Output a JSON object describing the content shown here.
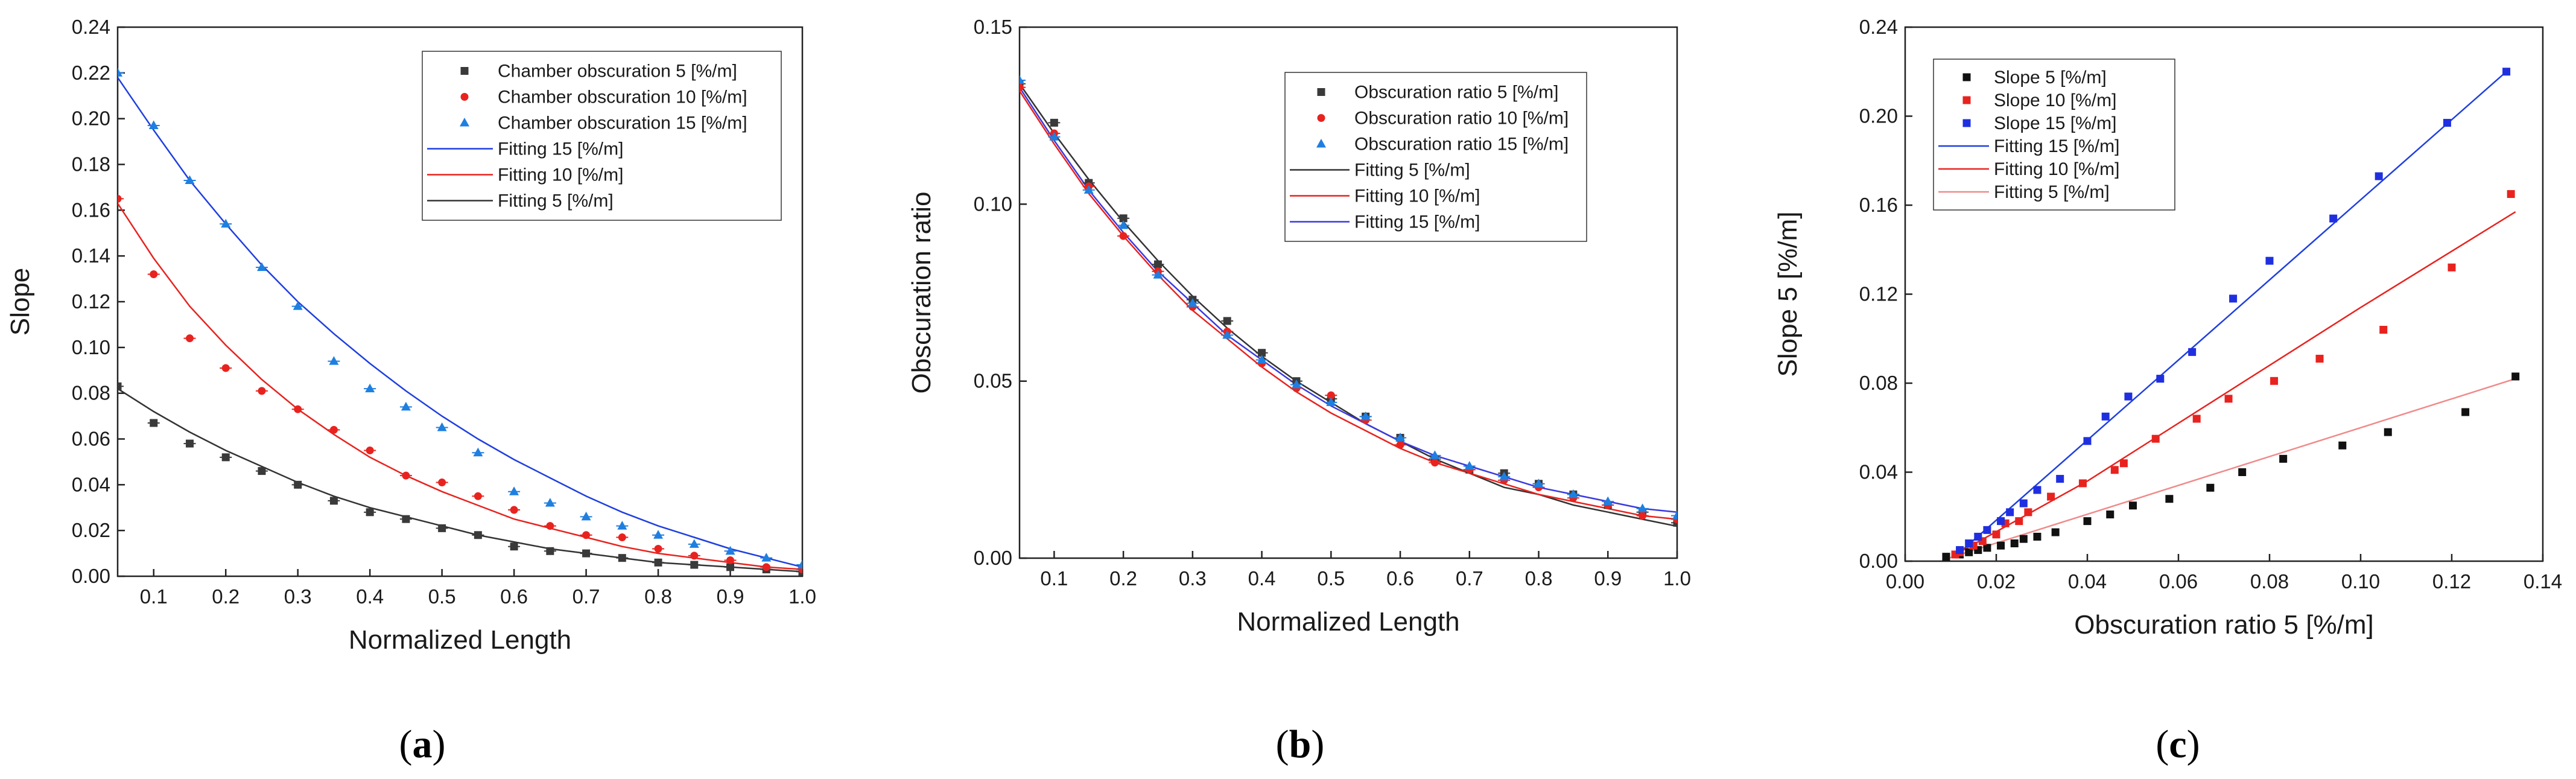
{
  "chart_data": [
    {
      "type": "scatter",
      "panel_label": "a",
      "xlabel": "Normalized Length",
      "ylabel": "Slope",
      "xlim": [
        0.05,
        1.0
      ],
      "ylim": [
        0,
        0.24
      ],
      "xticks": [
        0.1,
        0.2,
        0.3,
        0.4,
        0.5,
        0.6,
        0.7,
        0.8,
        0.9,
        1.0
      ],
      "xtick_labels": [
        "0.1",
        "0.2",
        "0.3",
        "0.4",
        "0.5",
        "0.6",
        "0.7",
        "0.8",
        "0.9",
        "1.0"
      ],
      "yticks": [
        0,
        0.02,
        0.04,
        0.06,
        0.08,
        0.1,
        0.12,
        0.14,
        0.16,
        0.18,
        0.2,
        0.22,
        0.24
      ],
      "ytick_labels": [
        "0.00",
        "0.02",
        "0.04",
        "0.06",
        "0.08",
        "0.10",
        "0.12",
        "0.14",
        "0.16",
        "0.18",
        "0.20",
        "0.22",
        "0.24"
      ],
      "legend_position": "top-right",
      "series": [
        {
          "name": "Chamber obscuration 5 [%/m]",
          "kind": "points",
          "marker": "square",
          "color": "#3a3a3a",
          "x": [
            0.05,
            0.1,
            0.15,
            0.2,
            0.25,
            0.3,
            0.35,
            0.4,
            0.45,
            0.5,
            0.55,
            0.6,
            0.65,
            0.7,
            0.75,
            0.8,
            0.85,
            0.9,
            0.95,
            1.0
          ],
          "y": [
            0.083,
            0.067,
            0.058,
            0.052,
            0.046,
            0.04,
            0.033,
            0.028,
            0.025,
            0.021,
            0.018,
            0.013,
            0.011,
            0.01,
            0.008,
            0.006,
            0.005,
            0.004,
            0.003,
            0.002
          ]
        },
        {
          "name": "Chamber obscuration 10 [%/m]",
          "kind": "points",
          "marker": "circle",
          "color": "#e8231f",
          "x": [
            0.05,
            0.1,
            0.15,
            0.2,
            0.25,
            0.3,
            0.35,
            0.4,
            0.45,
            0.5,
            0.55,
            0.6,
            0.65,
            0.7,
            0.75,
            0.8,
            0.85,
            0.9,
            0.95,
            1.0
          ],
          "y": [
            0.165,
            0.132,
            0.104,
            0.091,
            0.081,
            0.073,
            0.064,
            0.055,
            0.044,
            0.041,
            0.035,
            0.029,
            0.022,
            0.018,
            0.017,
            0.012,
            0.009,
            0.007,
            0.004,
            0.003
          ]
        },
        {
          "name": "Chamber obscuration 15 [%/m]",
          "kind": "points",
          "marker": "triangle",
          "color": "#1f7fe0",
          "x": [
            0.05,
            0.1,
            0.15,
            0.2,
            0.25,
            0.3,
            0.35,
            0.4,
            0.45,
            0.5,
            0.55,
            0.6,
            0.65,
            0.7,
            0.75,
            0.8,
            0.85,
            0.9,
            0.95,
            1.0
          ],
          "y": [
            0.22,
            0.197,
            0.173,
            0.154,
            0.135,
            0.118,
            0.094,
            0.082,
            0.074,
            0.065,
            0.054,
            0.037,
            0.032,
            0.026,
            0.022,
            0.018,
            0.014,
            0.011,
            0.008,
            0.005
          ]
        },
        {
          "name": "Fitting 15 [%/m]",
          "kind": "line",
          "color": "#1f3fe0",
          "x": [
            0.05,
            0.1,
            0.15,
            0.2,
            0.25,
            0.3,
            0.35,
            0.4,
            0.45,
            0.5,
            0.55,
            0.6,
            0.65,
            0.7,
            0.75,
            0.8,
            0.85,
            0.9,
            0.95,
            1.0
          ],
          "y": [
            0.218,
            0.195,
            0.173,
            0.154,
            0.136,
            0.12,
            0.106,
            0.093,
            0.081,
            0.07,
            0.06,
            0.051,
            0.043,
            0.035,
            0.028,
            0.022,
            0.017,
            0.012,
            0.008,
            0.004
          ]
        },
        {
          "name": "Fitting 10 [%/m]",
          "kind": "line",
          "color": "#e8231f",
          "x": [
            0.05,
            0.1,
            0.15,
            0.2,
            0.25,
            0.3,
            0.35,
            0.4,
            0.45,
            0.5,
            0.55,
            0.6,
            0.65,
            0.7,
            0.75,
            0.8,
            0.85,
            0.9,
            0.95,
            1.0
          ],
          "y": [
            0.163,
            0.139,
            0.118,
            0.101,
            0.086,
            0.073,
            0.062,
            0.052,
            0.044,
            0.037,
            0.031,
            0.025,
            0.021,
            0.017,
            0.013,
            0.01,
            0.008,
            0.006,
            0.004,
            0.003
          ]
        },
        {
          "name": "Fitting 5 [%/m]",
          "kind": "line",
          "color": "#333333",
          "x": [
            0.05,
            0.1,
            0.15,
            0.2,
            0.25,
            0.3,
            0.35,
            0.4,
            0.45,
            0.5,
            0.55,
            0.6,
            0.65,
            0.7,
            0.75,
            0.8,
            0.85,
            0.9,
            0.95,
            1.0
          ],
          "y": [
            0.082,
            0.072,
            0.063,
            0.055,
            0.048,
            0.041,
            0.035,
            0.03,
            0.026,
            0.022,
            0.018,
            0.015,
            0.012,
            0.01,
            0.008,
            0.006,
            0.005,
            0.004,
            0.003,
            0.002
          ]
        }
      ]
    },
    {
      "type": "scatter",
      "panel_label": "b",
      "xlabel": "Normalized Length",
      "ylabel": "Obscuration ratio",
      "xlim": [
        0.05,
        1.0
      ],
      "ylim": [
        0,
        0.15
      ],
      "xticks": [
        0.1,
        0.2,
        0.3,
        0.4,
        0.5,
        0.6,
        0.7,
        0.8,
        0.9,
        1.0
      ],
      "xtick_labels": [
        "0.1",
        "0.2",
        "0.3",
        "0.4",
        "0.5",
        "0.6",
        "0.7",
        "0.8",
        "0.9",
        "1.0"
      ],
      "yticks": [
        0,
        0.05,
        0.1,
        0.15
      ],
      "ytick_labels": [
        "0.00",
        "0.05",
        "0.10",
        "0.15"
      ],
      "legend_position": "top-right",
      "series": [
        {
          "name": "Obscuration ratio 5 [%/m]",
          "kind": "points",
          "marker": "square",
          "color": "#3a3a3a",
          "x": [
            0.05,
            0.1,
            0.15,
            0.2,
            0.25,
            0.3,
            0.35,
            0.4,
            0.45,
            0.5,
            0.55,
            0.6,
            0.65,
            0.7,
            0.75,
            0.8,
            0.85,
            0.9,
            0.95,
            1.0
          ],
          "y": [
            0.134,
            0.123,
            0.106,
            0.096,
            0.083,
            0.073,
            0.067,
            0.058,
            0.05,
            0.045,
            0.04,
            0.034,
            0.028,
            0.025,
            0.024,
            0.021,
            0.018,
            0.015,
            0.013,
            0.01
          ]
        },
        {
          "name": "Obscuration ratio 10 [%/m]",
          "kind": "points",
          "marker": "circle",
          "color": "#e8231f",
          "x": [
            0.05,
            0.1,
            0.15,
            0.2,
            0.25,
            0.3,
            0.35,
            0.4,
            0.45,
            0.5,
            0.55,
            0.6,
            0.65,
            0.7,
            0.75,
            0.8,
            0.85,
            0.9,
            0.95,
            1.0
          ],
          "y": [
            0.133,
            0.12,
            0.105,
            0.091,
            0.081,
            0.071,
            0.064,
            0.055,
            0.048,
            0.046,
            0.039,
            0.032,
            0.027,
            0.025,
            0.022,
            0.02,
            0.017,
            0.015,
            0.012,
            0.011
          ]
        },
        {
          "name": "Obscuration ratio 15 [%/m]",
          "kind": "points",
          "marker": "triangle",
          "color": "#1f7fe0",
          "x": [
            0.05,
            0.1,
            0.15,
            0.2,
            0.25,
            0.3,
            0.35,
            0.4,
            0.45,
            0.5,
            0.55,
            0.6,
            0.65,
            0.7,
            0.75,
            0.8,
            0.85,
            0.9,
            0.95,
            1.0
          ],
          "y": [
            0.135,
            0.119,
            0.104,
            0.094,
            0.08,
            0.072,
            0.063,
            0.056,
            0.049,
            0.044,
            0.04,
            0.034,
            0.029,
            0.026,
            0.023,
            0.021,
            0.018,
            0.016,
            0.014,
            0.012
          ]
        },
        {
          "name": "Fitting 5 [%/m]",
          "kind": "line",
          "color": "#333333",
          "x": [
            0.05,
            0.1,
            0.15,
            0.2,
            0.25,
            0.3,
            0.35,
            0.4,
            0.45,
            0.5,
            0.55,
            0.6,
            0.65,
            0.7,
            0.75,
            0.8,
            0.85,
            0.9,
            0.95,
            1.0
          ],
          "y": [
            0.134,
            0.12,
            0.107,
            0.095,
            0.084,
            0.074,
            0.065,
            0.057,
            0.05,
            0.044,
            0.038,
            0.033,
            0.028,
            0.024,
            0.02,
            0.018,
            0.015,
            0.013,
            0.011,
            0.009
          ]
        },
        {
          "name": "Fitting 10 [%/m]",
          "kind": "line",
          "color": "#e8231f",
          "x": [
            0.05,
            0.1,
            0.15,
            0.2,
            0.25,
            0.3,
            0.35,
            0.4,
            0.45,
            0.5,
            0.55,
            0.6,
            0.65,
            0.7,
            0.75,
            0.8,
            0.85,
            0.9,
            0.95,
            1.0
          ],
          "y": [
            0.132,
            0.117,
            0.103,
            0.091,
            0.08,
            0.07,
            0.062,
            0.054,
            0.047,
            0.041,
            0.036,
            0.031,
            0.027,
            0.024,
            0.021,
            0.018,
            0.016,
            0.014,
            0.012,
            0.011
          ]
        },
        {
          "name": "Fitting 15 [%/m]",
          "kind": "line",
          "color": "#3a3ae0",
          "x": [
            0.05,
            0.1,
            0.15,
            0.2,
            0.25,
            0.3,
            0.35,
            0.4,
            0.45,
            0.5,
            0.55,
            0.6,
            0.65,
            0.7,
            0.75,
            0.8,
            0.85,
            0.9,
            0.95,
            1.0
          ],
          "y": [
            0.133,
            0.118,
            0.104,
            0.092,
            0.081,
            0.072,
            0.063,
            0.056,
            0.049,
            0.043,
            0.038,
            0.033,
            0.029,
            0.026,
            0.023,
            0.02,
            0.018,
            0.016,
            0.014,
            0.013
          ]
        }
      ]
    },
    {
      "type": "scatter",
      "panel_label": "c",
      "xlabel": "Obscuration ratio 5 [%/m]",
      "ylabel": "Slope 5 [%/m]",
      "xlim": [
        0,
        0.14
      ],
      "ylim": [
        0,
        0.24
      ],
      "xticks": [
        0,
        0.02,
        0.04,
        0.06,
        0.08,
        0.1,
        0.12,
        0.14
      ],
      "xtick_labels": [
        "0.00",
        "0.02",
        "0.04",
        "0.06",
        "0.08",
        "0.10",
        "0.12",
        "0.14"
      ],
      "yticks": [
        0,
        0.04,
        0.08,
        0.12,
        0.16,
        0.2,
        0.24
      ],
      "ytick_labels": [
        "0.00",
        "0.04",
        "0.08",
        "0.12",
        "0.16",
        "0.20",
        "0.24"
      ],
      "legend_position": "top-left",
      "series": [
        {
          "name": "Slope 5 [%/m]",
          "kind": "points",
          "marker": "square",
          "color": "#111111",
          "x": [
            0.009,
            0.012,
            0.014,
            0.016,
            0.018,
            0.021,
            0.024,
            0.026,
            0.029,
            0.033,
            0.04,
            0.045,
            0.05,
            0.058,
            0.067,
            0.074,
            0.083,
            0.096,
            0.106,
            0.123,
            0.134
          ],
          "y": [
            0.002,
            0.003,
            0.004,
            0.005,
            0.006,
            0.007,
            0.008,
            0.01,
            0.011,
            0.013,
            0.018,
            0.021,
            0.025,
            0.028,
            0.033,
            0.04,
            0.046,
            0.052,
            0.058,
            0.067,
            0.083
          ]
        },
        {
          "name": "Slope 10 [%/m]",
          "kind": "points",
          "marker": "square",
          "color": "#e8231f",
          "x": [
            0.011,
            0.012,
            0.015,
            0.017,
            0.02,
            0.022,
            0.025,
            0.027,
            0.032,
            0.039,
            0.046,
            0.048,
            0.055,
            0.064,
            0.071,
            0.081,
            0.091,
            0.105,
            0.12,
            0.133
          ],
          "y": [
            0.003,
            0.004,
            0.007,
            0.009,
            0.012,
            0.017,
            0.018,
            0.022,
            0.029,
            0.035,
            0.041,
            0.044,
            0.055,
            0.064,
            0.073,
            0.081,
            0.091,
            0.104,
            0.132,
            0.165
          ]
        },
        {
          "name": "Slope 15 [%/m]",
          "kind": "points",
          "marker": "square",
          "color": "#1f2fe0",
          "x": [
            0.012,
            0.014,
            0.016,
            0.018,
            0.021,
            0.023,
            0.026,
            0.029,
            0.034,
            0.04,
            0.044,
            0.049,
            0.056,
            0.063,
            0.072,
            0.08,
            0.094,
            0.104,
            0.119,
            0.132
          ],
          "y": [
            0.005,
            0.008,
            0.011,
            0.014,
            0.018,
            0.022,
            0.026,
            0.032,
            0.037,
            0.054,
            0.065,
            0.074,
            0.082,
            0.094,
            0.118,
            0.135,
            0.154,
            0.173,
            0.197,
            0.22
          ]
        },
        {
          "name": "Fitting 15 [%/m]",
          "kind": "line",
          "color": "#1f3fe0",
          "x": [
            0.012,
            0.132
          ],
          "y": [
            0.004,
            0.22
          ]
        },
        {
          "name": "Fitting 10 [%/m]",
          "kind": "line",
          "color": "#e8231f",
          "x": [
            0.011,
            0.04,
            0.07,
            0.1,
            0.134
          ],
          "y": [
            0.003,
            0.036,
            0.075,
            0.114,
            0.157
          ]
        },
        {
          "name": "Fitting 5 [%/m]",
          "kind": "line",
          "color": "#f08a8a",
          "x": [
            0.009,
            0.134
          ],
          "y": [
            0.001,
            0.082
          ]
        }
      ]
    }
  ]
}
